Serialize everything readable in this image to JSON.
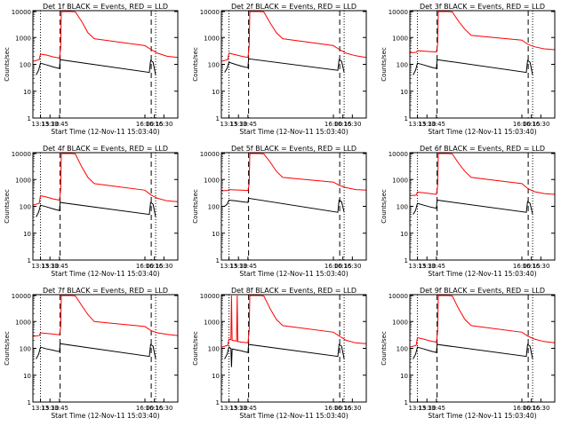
{
  "chart_data": [
    {
      "type": "line",
      "title": "Det 1f BLACK = Events, RED = LLD",
      "xlabel": "Start Time (12-Nov-11 15:03:40)",
      "ylabel": "Counts/sec",
      "yscale": "log",
      "ylim": [
        1,
        10000
      ],
      "y_ticks": [
        "1",
        "10",
        "100",
        "1000",
        "10000"
      ],
      "xlim": [
        "13:03",
        "16:52"
      ],
      "x_ticks": [
        "13:15",
        "13:30",
        "13:45",
        "16:00",
        "16:15",
        "16:30"
      ],
      "dotted_lines": [
        "13:15",
        "16:17"
      ],
      "dashed_lines": [
        "13:46",
        "16:10"
      ],
      "series": [
        {
          "color": "#ff0000",
          "x": [
            "13:03",
            "13:13",
            "13:15",
            "13:25",
            "13:35",
            "13:45",
            "13:47",
            "13:48",
            "13:52",
            "13:58",
            "14:03",
            "14:10",
            "14:20",
            "14:30",
            "14:40",
            "16:00",
            "16:10",
            "16:20",
            "16:35",
            "16:52"
          ],
          "y": [
            130,
            150,
            240,
            220,
            190,
            170,
            450,
            10000,
            11000,
            11000,
            10000,
            9000,
            4000,
            1500,
            900,
            500,
            350,
            260,
            200,
            180
          ]
        },
        {
          "color": "#000000",
          "x": [
            "13:08",
            "13:12",
            "13:15",
            "13:25",
            "13:35",
            "13:45",
            "13:46",
            "16:07",
            "16:09",
            "16:13",
            "16:17"
          ],
          "y": [
            40,
            60,
            110,
            95,
            80,
            70,
            150,
            50,
            140,
            120,
            40
          ]
        }
      ]
    },
    {
      "type": "line",
      "title": "Det 2f BLACK = Events, RED = LLD",
      "xlabel": "Start Time (12-Nov-11 15:03:40)",
      "ylabel": "Counts/sec",
      "yscale": "log",
      "ylim": [
        1,
        10000
      ],
      "y_ticks": [
        "1",
        "10",
        "100",
        "1000",
        "10000"
      ],
      "xlim": [
        "13:03",
        "16:52"
      ],
      "x_ticks": [
        "13:15",
        "13:30",
        "13:45",
        "16:00",
        "16:15",
        "16:30"
      ],
      "dotted_lines": [
        "13:15",
        "16:17"
      ],
      "dashed_lines": [
        "13:46",
        "16:10"
      ],
      "series": [
        {
          "color": "#ff0000",
          "x": [
            "13:03",
            "13:13",
            "13:15",
            "13:25",
            "13:35",
            "13:45",
            "13:47",
            "13:48",
            "13:52",
            "13:58",
            "14:03",
            "14:10",
            "14:20",
            "14:30",
            "14:40",
            "16:00",
            "16:10",
            "16:20",
            "16:35",
            "16:52"
          ],
          "y": [
            130,
            150,
            260,
            230,
            200,
            180,
            500,
            10000,
            11000,
            11000,
            10000,
            9000,
            3500,
            1500,
            900,
            500,
            350,
            260,
            210,
            180
          ]
        },
        {
          "color": "#000000",
          "x": [
            "13:08",
            "13:12",
            "13:15",
            "13:25",
            "13:35",
            "13:45",
            "13:46",
            "16:07",
            "16:09",
            "16:13",
            "16:17"
          ],
          "y": [
            50,
            70,
            120,
            100,
            85,
            75,
            160,
            60,
            150,
            130,
            50
          ]
        }
      ]
    },
    {
      "type": "line",
      "title": "Det 3f BLACK = Events, RED = LLD",
      "xlabel": "Start Time (12-Nov-11 15:03:40)",
      "ylabel": "Counts/sec",
      "yscale": "log",
      "ylim": [
        1,
        10000
      ],
      "y_ticks": [
        "1",
        "10",
        "100",
        "1000",
        "10000"
      ],
      "xlim": [
        "13:03",
        "16:52"
      ],
      "x_ticks": [
        "13:15",
        "13:30",
        "13:45",
        "16:00",
        "16:15",
        "16:30"
      ],
      "dotted_lines": [
        "13:15",
        "16:17"
      ],
      "dashed_lines": [
        "13:46",
        "16:10"
      ],
      "series": [
        {
          "color": "#ff0000",
          "x": [
            "13:03",
            "13:13",
            "13:15",
            "13:25",
            "13:35",
            "13:45",
            "13:47",
            "13:48",
            "13:52",
            "13:58",
            "14:03",
            "14:10",
            "14:20",
            "14:30",
            "14:40",
            "16:00",
            "16:10",
            "16:20",
            "16:35",
            "16:52"
          ],
          "y": [
            270,
            280,
            320,
            310,
            300,
            290,
            600,
            10000,
            11000,
            11000,
            10000,
            9000,
            4000,
            2000,
            1200,
            800,
            550,
            450,
            380,
            350
          ]
        },
        {
          "color": "#000000",
          "x": [
            "13:08",
            "13:12",
            "13:15",
            "13:25",
            "13:35",
            "13:45",
            "13:46",
            "16:07",
            "16:09",
            "16:13",
            "16:17"
          ],
          "y": [
            40,
            60,
            110,
            95,
            80,
            70,
            150,
            50,
            140,
            120,
            40
          ]
        }
      ]
    },
    {
      "type": "line",
      "title": "Det 4f BLACK = Events, RED = LLD",
      "xlabel": "Start Time (12-Nov-11 15:03:40)",
      "ylabel": "Counts/sec",
      "yscale": "log",
      "ylim": [
        1,
        10000
      ],
      "y_ticks": [
        "1",
        "10",
        "100",
        "1000",
        "10000"
      ],
      "xlim": [
        "13:03",
        "16:52"
      ],
      "x_ticks": [
        "13:15",
        "13:30",
        "13:45",
        "16:00",
        "16:15",
        "16:30"
      ],
      "dotted_lines": [
        "13:15",
        "16:17"
      ],
      "dashed_lines": [
        "13:46",
        "16:10"
      ],
      "series": [
        {
          "color": "#ff0000",
          "x": [
            "13:03",
            "13:13",
            "13:15",
            "13:25",
            "13:35",
            "13:45",
            "13:47",
            "13:48",
            "13:52",
            "13:58",
            "14:03",
            "14:10",
            "14:20",
            "14:30",
            "14:40",
            "16:00",
            "16:10",
            "16:20",
            "16:35",
            "16:52"
          ],
          "y": [
            110,
            130,
            250,
            220,
            190,
            170,
            450,
            10000,
            11000,
            11000,
            10000,
            9000,
            3000,
            1200,
            700,
            400,
            260,
            200,
            160,
            150
          ]
        },
        {
          "color": "#000000",
          "x": [
            "13:08",
            "13:12",
            "13:15",
            "13:25",
            "13:35",
            "13:45",
            "13:46",
            "16:07",
            "16:09",
            "16:13",
            "16:17"
          ],
          "y": [
            40,
            60,
            110,
            95,
            80,
            70,
            140,
            50,
            140,
            120,
            40
          ]
        }
      ]
    },
    {
      "type": "line",
      "title": "Det 5f BLACK = Events, RED = LLD",
      "xlabel": "Start Time (12-Nov-11 15:03:40)",
      "ylabel": "Counts/sec",
      "yscale": "log",
      "ylim": [
        1,
        10000
      ],
      "y_ticks": [
        "1",
        "10",
        "100",
        "1000",
        "10000"
      ],
      "xlim": [
        "13:03",
        "16:52"
      ],
      "x_ticks": [
        "13:15",
        "13:30",
        "13:45",
        "16:00",
        "16:15",
        "16:30"
      ],
      "dotted_lines": [
        "13:15",
        "16:17"
      ],
      "dashed_lines": [
        "13:46",
        "16:10"
      ],
      "series": [
        {
          "color": "#ff0000",
          "x": [
            "13:03",
            "13:13",
            "13:15",
            "13:25",
            "13:35",
            "13:45",
            "13:47",
            "13:48",
            "13:52",
            "13:58",
            "14:03",
            "14:10",
            "14:20",
            "14:30",
            "14:40",
            "16:00",
            "16:10",
            "16:20",
            "16:35",
            "16:52"
          ],
          "y": [
            380,
            390,
            420,
            410,
            400,
            390,
            700,
            10000,
            11000,
            11000,
            10000,
            9000,
            4500,
            2000,
            1200,
            800,
            600,
            500,
            420,
            400
          ]
        },
        {
          "color": "#000000",
          "x": [
            "13:08",
            "13:12",
            "13:15",
            "13:25",
            "13:35",
            "13:45",
            "13:46",
            "16:07",
            "16:09",
            "16:13",
            "16:17"
          ],
          "y": [
            100,
            120,
            170,
            160,
            150,
            140,
            200,
            60,
            170,
            150,
            60
          ]
        }
      ]
    },
    {
      "type": "line",
      "title": "Det 6f BLACK = Events, RED = LLD",
      "xlabel": "Start Time (12-Nov-11 15:03:40)",
      "ylabel": "Counts/sec",
      "yscale": "log",
      "ylim": [
        1,
        10000
      ],
      "y_ticks": [
        "1",
        "10",
        "100",
        "1000",
        "10000"
      ],
      "xlim": [
        "13:03",
        "16:52"
      ],
      "x_ticks": [
        "13:15",
        "13:30",
        "13:45",
        "16:00",
        "16:15",
        "16:30"
      ],
      "dotted_lines": [
        "13:15",
        "16:17"
      ],
      "dashed_lines": [
        "13:46",
        "16:10"
      ],
      "series": [
        {
          "color": "#ff0000",
          "x": [
            "13:03",
            "13:13",
            "13:15",
            "13:25",
            "13:35",
            "13:45",
            "13:47",
            "13:48",
            "13:52",
            "13:58",
            "14:03",
            "14:10",
            "14:20",
            "14:30",
            "14:40",
            "16:00",
            "16:10",
            "16:20",
            "16:35",
            "16:52"
          ],
          "y": [
            250,
            260,
            340,
            320,
            300,
            280,
            600,
            10000,
            11000,
            11000,
            10000,
            9000,
            4000,
            2000,
            1200,
            700,
            450,
            350,
            300,
            280
          ]
        },
        {
          "color": "#000000",
          "x": [
            "13:08",
            "13:12",
            "13:15",
            "13:25",
            "13:35",
            "13:45",
            "13:46",
            "16:07",
            "16:09",
            "16:13",
            "16:17"
          ],
          "y": [
            50,
            70,
            130,
            110,
            95,
            85,
            170,
            60,
            150,
            130,
            50
          ]
        }
      ]
    },
    {
      "type": "line",
      "title": "Det 7f BLACK = Events, RED = LLD",
      "xlabel": "Start Time (12-Nov-11 15:03:40)",
      "ylabel": "Counts/sec",
      "yscale": "log",
      "ylim": [
        1,
        10000
      ],
      "y_ticks": [
        "1",
        "10",
        "100",
        "1000",
        "10000"
      ],
      "xlim": [
        "13:03",
        "16:52"
      ],
      "x_ticks": [
        "13:15",
        "13:30",
        "13:45",
        "16:00",
        "16:15",
        "16:30"
      ],
      "dotted_lines": [
        "13:15",
        "16:17"
      ],
      "dashed_lines": [
        "13:46",
        "16:10"
      ],
      "series": [
        {
          "color": "#ff0000",
          "x": [
            "13:03",
            "13:13",
            "13:15",
            "13:25",
            "13:35",
            "13:45",
            "13:47",
            "13:48",
            "13:52",
            "13:58",
            "14:03",
            "14:10",
            "14:20",
            "14:30",
            "14:40",
            "16:00",
            "16:10",
            "16:20",
            "16:35",
            "16:52"
          ],
          "y": [
            280,
            300,
            380,
            360,
            340,
            320,
            650,
            10000,
            11000,
            11000,
            10000,
            9000,
            4000,
            1800,
            1000,
            650,
            450,
            380,
            330,
            300
          ]
        },
        {
          "color": "#000000",
          "x": [
            "13:08",
            "13:12",
            "13:15",
            "13:25",
            "13:35",
            "13:45",
            "13:46",
            "16:07",
            "16:09",
            "16:13",
            "16:17"
          ],
          "y": [
            40,
            60,
            110,
            95,
            85,
            75,
            150,
            50,
            140,
            120,
            40
          ]
        }
      ]
    },
    {
      "type": "line",
      "title": "Det 8f BLACK = Events, RED = LLD",
      "xlabel": "Start Time (12-Nov-11 15:03:40)",
      "ylabel": "Counts/sec",
      "yscale": "log",
      "ylim": [
        1,
        10000
      ],
      "y_ticks": [
        "1",
        "10",
        "100",
        "1000",
        "10000"
      ],
      "xlim": [
        "13:03",
        "16:52"
      ],
      "x_ticks": [
        "13:15",
        "13:30",
        "13:45",
        "16:00",
        "16:15",
        "16:30"
      ],
      "dotted_lines": [
        "13:15",
        "16:17"
      ],
      "dashed_lines": [
        "13:46",
        "16:10"
      ],
      "series": [
        {
          "color": "#ff0000",
          "x": [
            "13:03",
            "13:13",
            "13:15",
            "13:18",
            "13:19",
            "13:20",
            "13:25",
            "13:27",
            "13:28",
            "13:29",
            "13:35",
            "13:45",
            "13:47",
            "13:48",
            "13:52",
            "13:58",
            "14:03",
            "14:10",
            "14:20",
            "14:30",
            "14:40",
            "16:00",
            "16:10",
            "16:20",
            "16:35",
            "16:52"
          ],
          "y": [
            110,
            130,
            220,
            210,
            10000,
            200,
            190,
            185,
            10000,
            180,
            170,
            160,
            450,
            10000,
            11000,
            11000,
            10000,
            9000,
            3000,
            1200,
            700,
            400,
            280,
            200,
            160,
            150
          ]
        },
        {
          "color": "#000000",
          "x": [
            "13:08",
            "13:12",
            "13:15",
            "13:18",
            "13:19",
            "13:20",
            "13:35",
            "13:45",
            "13:46",
            "16:07",
            "16:09",
            "16:13",
            "16:17"
          ],
          "y": [
            40,
            60,
            110,
            100,
            20,
            95,
            80,
            70,
            140,
            50,
            140,
            120,
            40
          ]
        }
      ]
    },
    {
      "type": "line",
      "title": "Det 9f BLACK = Events, RED = LLD",
      "xlabel": "Start Time (12-Nov-11 15:03:40)",
      "ylabel": "Counts/sec",
      "yscale": "log",
      "ylim": [
        1,
        10000
      ],
      "y_ticks": [
        "1",
        "10",
        "100",
        "1000",
        "10000"
      ],
      "xlim": [
        "13:03",
        "16:52"
      ],
      "x_ticks": [
        "13:15",
        "13:30",
        "13:45",
        "16:00",
        "16:15",
        "16:30"
      ],
      "dotted_lines": [
        "13:15",
        "16:17"
      ],
      "dashed_lines": [
        "13:46",
        "16:10"
      ],
      "series": [
        {
          "color": "#ff0000",
          "x": [
            "13:03",
            "13:13",
            "13:15",
            "13:25",
            "13:35",
            "13:45",
            "13:47",
            "13:48",
            "13:52",
            "13:58",
            "14:03",
            "14:10",
            "14:20",
            "14:30",
            "14:40",
            "16:00",
            "16:10",
            "16:20",
            "16:35",
            "16:52"
          ],
          "y": [
            110,
            130,
            250,
            220,
            190,
            170,
            450,
            10000,
            11000,
            11000,
            10000,
            9000,
            3000,
            1200,
            700,
            400,
            280,
            220,
            180,
            160
          ]
        },
        {
          "color": "#000000",
          "x": [
            "13:08",
            "13:12",
            "13:15",
            "13:25",
            "13:35",
            "13:45",
            "13:46",
            "16:07",
            "16:09",
            "16:13",
            "16:17"
          ],
          "y": [
            40,
            60,
            110,
            95,
            80,
            70,
            140,
            50,
            140,
            120,
            40
          ]
        }
      ]
    }
  ]
}
